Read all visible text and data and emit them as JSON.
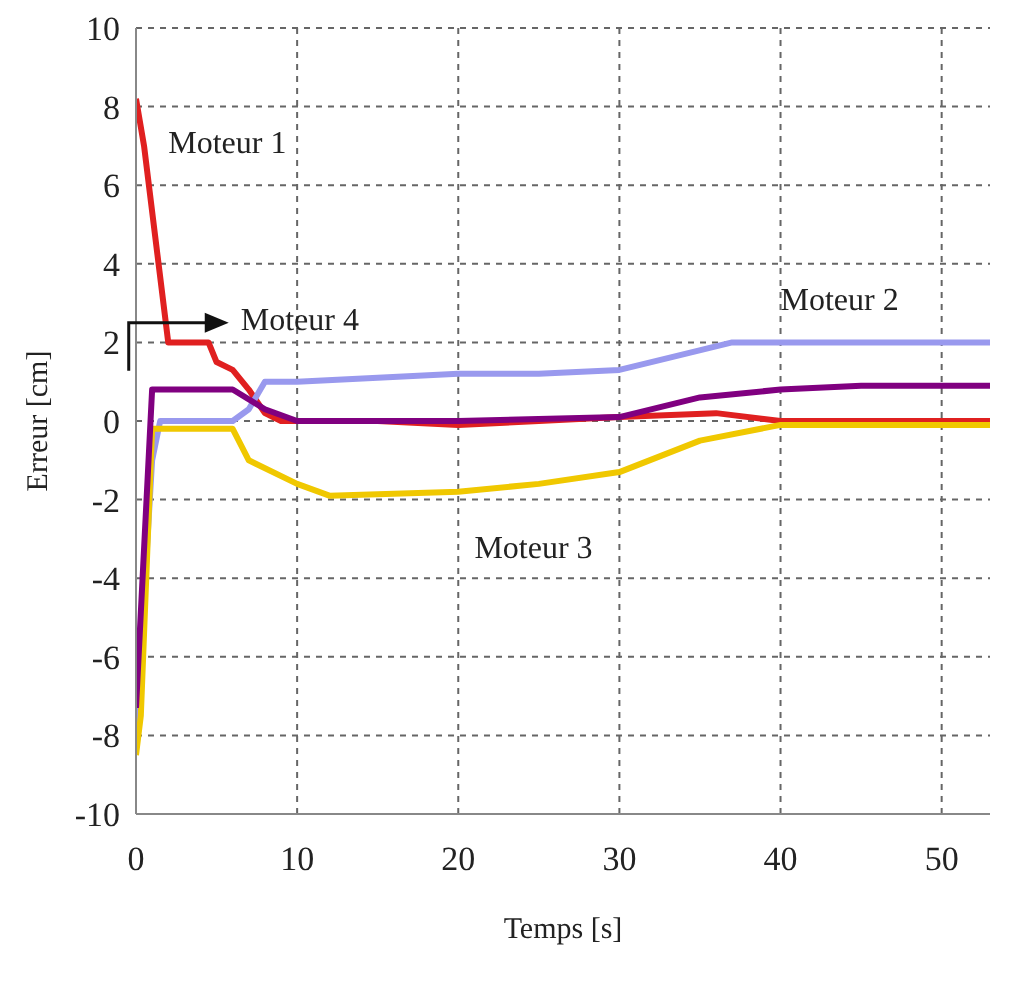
{
  "chart_data": {
    "type": "line",
    "xlabel": "Temps [s]",
    "ylabel": "Erreur [cm]",
    "xlim": [
      0,
      53
    ],
    "ylim": [
      -10,
      10
    ],
    "xticks": [
      0,
      10,
      20,
      30,
      40,
      50
    ],
    "yticks": [
      -10,
      -8,
      -6,
      -4,
      -2,
      0,
      2,
      4,
      6,
      8,
      10
    ],
    "grid": true,
    "marker": "none",
    "line_style": "solid",
    "series": [
      {
        "name": "Moteur 1",
        "color": "#e02020",
        "x": [
          0,
          0.5,
          2,
          4.5,
          5,
          6,
          7,
          8,
          9,
          15,
          20,
          25,
          30,
          36,
          40,
          45,
          53
        ],
        "values": [
          8.2,
          7,
          2,
          2,
          1.5,
          1.3,
          0.8,
          0.2,
          0,
          0,
          -0.1,
          0,
          0.1,
          0.2,
          0,
          0,
          0
        ]
      },
      {
        "name": "Moteur 2",
        "color": "#9999ee",
        "x": [
          0,
          1,
          1.5,
          6,
          7,
          8,
          10,
          15,
          20,
          25,
          30,
          33,
          37,
          45,
          53
        ],
        "values": [
          -8,
          -1,
          0,
          0,
          0.3,
          1,
          1,
          1.1,
          1.2,
          1.2,
          1.3,
          1.6,
          2,
          2,
          2
        ]
      },
      {
        "name": "Moteur 3",
        "color": "#f0c800",
        "x": [
          0,
          0.3,
          1,
          6,
          7,
          10,
          12,
          20,
          25,
          30,
          35,
          40,
          45,
          53
        ],
        "values": [
          -8.5,
          -7.5,
          -0.2,
          -0.2,
          -1,
          -1.6,
          -1.9,
          -1.8,
          -1.6,
          -1.3,
          -0.5,
          -0.1,
          -0.1,
          -0.1
        ]
      },
      {
        "name": "Moteur 4",
        "color": "#800080",
        "x": [
          0,
          1,
          6,
          8,
          10,
          20,
          30,
          35,
          40,
          45,
          53
        ],
        "values": [
          -7.3,
          0.8,
          0.8,
          0.3,
          0,
          0,
          0.1,
          0.6,
          0.8,
          0.9,
          0.9
        ]
      }
    ]
  }
}
